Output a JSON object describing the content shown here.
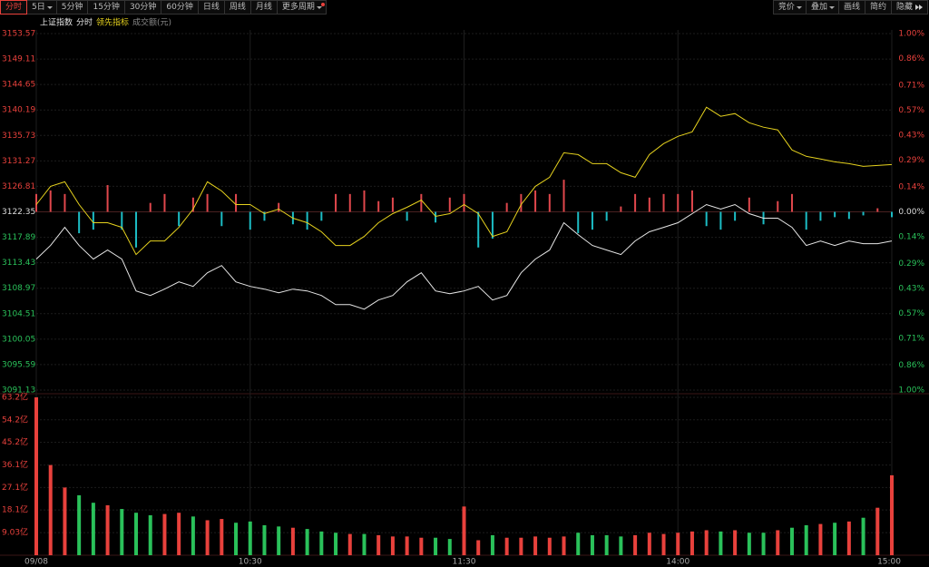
{
  "toolbar": {
    "left": [
      "分时",
      "5日",
      "5分钟",
      "15分钟",
      "30分钟",
      "60分钟",
      "日线",
      "周线",
      "月线",
      "更多周期"
    ],
    "right": [
      "竞价",
      "叠加",
      "画线",
      "简约",
      "隐藏"
    ]
  },
  "chart_data": [
    {
      "type": "line",
      "title": "上证指数",
      "x": [
        0,
        4,
        8,
        12,
        16,
        20,
        24,
        28,
        32,
        36,
        40,
        44,
        48,
        52,
        56,
        60,
        64,
        68,
        72,
        76,
        80,
        84,
        88,
        92,
        96,
        100,
        104,
        108,
        112,
        116,
        120,
        124,
        128,
        132,
        136,
        140,
        144,
        148,
        152,
        156,
        160,
        164,
        168,
        172,
        176,
        180,
        184,
        188,
        192,
        196,
        200,
        204,
        208,
        212,
        216,
        220,
        224,
        228,
        232,
        236,
        240
      ],
      "ylim": [
        3091.13,
        3153.57
      ],
      "yticks": [
        3091.13,
        3095.59,
        3100.05,
        3104.51,
        3108.97,
        3113.43,
        3117.89,
        3122.35,
        3126.81,
        3131.27,
        3135.73,
        3140.19,
        3144.65,
        3149.11,
        3153.57
      ],
      "y2lim": [
        -1,
        1
      ],
      "y2ticks": [
        {
          "value": -1,
          "label": "1.00%"
        },
        {
          "value": -0.86,
          "label": "0.86%"
        },
        {
          "value": -0.71,
          "label": "0.71%"
        },
        {
          "value": -0.57,
          "label": "0.57%"
        },
        {
          "value": -0.43,
          "label": "0.43%"
        },
        {
          "value": -0.29,
          "label": "0.29%"
        },
        {
          "value": -0.14,
          "label": "0.14%"
        },
        {
          "value": 0,
          "label": "0.00%"
        },
        {
          "value": 0.14,
          "label": "0.14%"
        },
        {
          "value": 0.29,
          "label": "0.29%"
        },
        {
          "value": 0.43,
          "label": "0.43%"
        },
        {
          "value": 0.57,
          "label": "0.57%"
        },
        {
          "value": 0.71,
          "label": "0.71%"
        },
        {
          "value": 0.86,
          "label": "0.86%"
        },
        {
          "value": 1,
          "label": "1.00%"
        }
      ],
      "up_color": "#e8413c",
      "down_color": "#2ac15a",
      "series": [
        {
          "name": "分时",
          "color": "#e6e6e6",
          "values": [
            3114.07,
            3116.46,
            3119.64,
            3116.46,
            3114.07,
            3115.66,
            3114.07,
            3108.49,
            3107.7,
            3108.81,
            3110.08,
            3109.29,
            3111.68,
            3112.95,
            3110.08,
            3109.29,
            3108.81,
            3108.17,
            3108.81,
            3108.49,
            3107.7,
            3106.1,
            3106.1,
            3105.31,
            3106.9,
            3107.7,
            3110.08,
            3111.68,
            3108.49,
            3108.01,
            3108.49,
            3109.29,
            3106.9,
            3107.7,
            3111.68,
            3114.07,
            3115.66,
            3120.44,
            3118.37,
            3116.46,
            3115.66,
            3114.86,
            3117.25,
            3118.85,
            3119.64,
            3120.44,
            3122.03,
            3123.62,
            3122.83,
            3123.62,
            3122.03,
            3121.23,
            3121.23,
            3119.64,
            3116.46,
            3117.25,
            3116.46,
            3117.25,
            3116.77,
            3116.77,
            3117.25
          ]
        },
        {
          "name": "领先指标",
          "color": "#e6d21e",
          "values": [
            3123.62,
            3126.81,
            3127.61,
            3123.62,
            3120.44,
            3120.44,
            3119.64,
            3114.86,
            3117.25,
            3117.25,
            3119.64,
            3122.83,
            3127.61,
            3126.01,
            3123.62,
            3123.62,
            3122.03,
            3122.83,
            3121.23,
            3120.44,
            3118.85,
            3116.46,
            3116.46,
            3118.05,
            3120.44,
            3122.03,
            3123.15,
            3124.42,
            3121.55,
            3122.03,
            3123.62,
            3122.03,
            3118.05,
            3118.85,
            3123.62,
            3126.81,
            3128.4,
            3132.7,
            3132.38,
            3130.79,
            3130.79,
            3129.2,
            3128.4,
            3132.38,
            3134.3,
            3135.57,
            3136.37,
            3140.67,
            3139.08,
            3139.55,
            3137.96,
            3137.17,
            3136.69,
            3133.18,
            3132.07,
            3131.59,
            3131.11,
            3130.79,
            3130.31,
            3130.47,
            3130.63
          ]
        }
      ],
      "bars": {
        "axis": "y2",
        "up_color": "#e0474c",
        "down_color": "#1cbcc4",
        "values": [
          0.1,
          0.12,
          0.1,
          -0.12,
          -0.1,
          0.15,
          -0.1,
          -0.2,
          0.05,
          0.1,
          -0.08,
          0.08,
          0.1,
          -0.08,
          0.1,
          -0.1,
          -0.05,
          0.05,
          -0.07,
          -0.1,
          -0.05,
          0.1,
          0.1,
          0.12,
          0.06,
          0.08,
          -0.05,
          0.1,
          -0.06,
          0.08,
          0.1,
          -0.2,
          -0.15,
          0.05,
          0.1,
          0.12,
          0.1,
          0.18,
          -0.12,
          -0.1,
          -0.05,
          0.03,
          0.1,
          0.08,
          0.1,
          0.1,
          0.12,
          -0.08,
          -0.1,
          -0.05,
          0.08,
          -0.07,
          0.06,
          0.1,
          -0.1,
          -0.05,
          -0.03,
          -0.04,
          -0.02,
          0.02,
          -0.03
        ]
      }
    },
    {
      "type": "bar",
      "title": "成交额(元)",
      "xlim": [
        0,
        240
      ],
      "xticks": [
        {
          "value": 0,
          "label": "09/08"
        },
        {
          "value": 60,
          "label": "10:30"
        },
        {
          "value": 120,
          "label": "11:30"
        },
        {
          "value": 180,
          "label": "14:00"
        },
        {
          "value": 240,
          "label": "15:00"
        }
      ],
      "ylim": [
        0,
        63.2
      ],
      "yticks": [
        {
          "value": 9.03,
          "label": "9.03亿"
        },
        {
          "value": 18.1,
          "label": "18.1亿"
        },
        {
          "value": 27.1,
          "label": "27.1亿"
        },
        {
          "value": 36.1,
          "label": "36.1亿"
        },
        {
          "value": 45.2,
          "label": "45.2亿"
        },
        {
          "value": 54.2,
          "label": "54.2亿"
        },
        {
          "value": 63.2,
          "label": "63.2亿"
        }
      ],
      "up_color": "#e8413c",
      "down_color": "#2ac15a",
      "values": [
        63.2,
        36.1,
        27.1,
        24,
        21,
        20,
        18.5,
        17,
        16,
        16.5,
        17,
        15.5,
        14,
        14.5,
        13,
        13.5,
        12,
        11.5,
        11,
        10.5,
        9.5,
        9,
        8.5,
        8.5,
        8,
        7.5,
        7.5,
        7,
        7,
        6.5,
        19.5,
        6,
        8,
        7,
        7,
        7.5,
        7,
        7.5,
        9,
        8,
        8,
        7.5,
        8,
        9,
        8.5,
        9,
        9.5,
        10,
        9.5,
        10,
        9,
        9,
        10,
        11,
        12,
        12.5,
        13,
        13.5,
        15,
        19,
        32
      ]
    }
  ]
}
